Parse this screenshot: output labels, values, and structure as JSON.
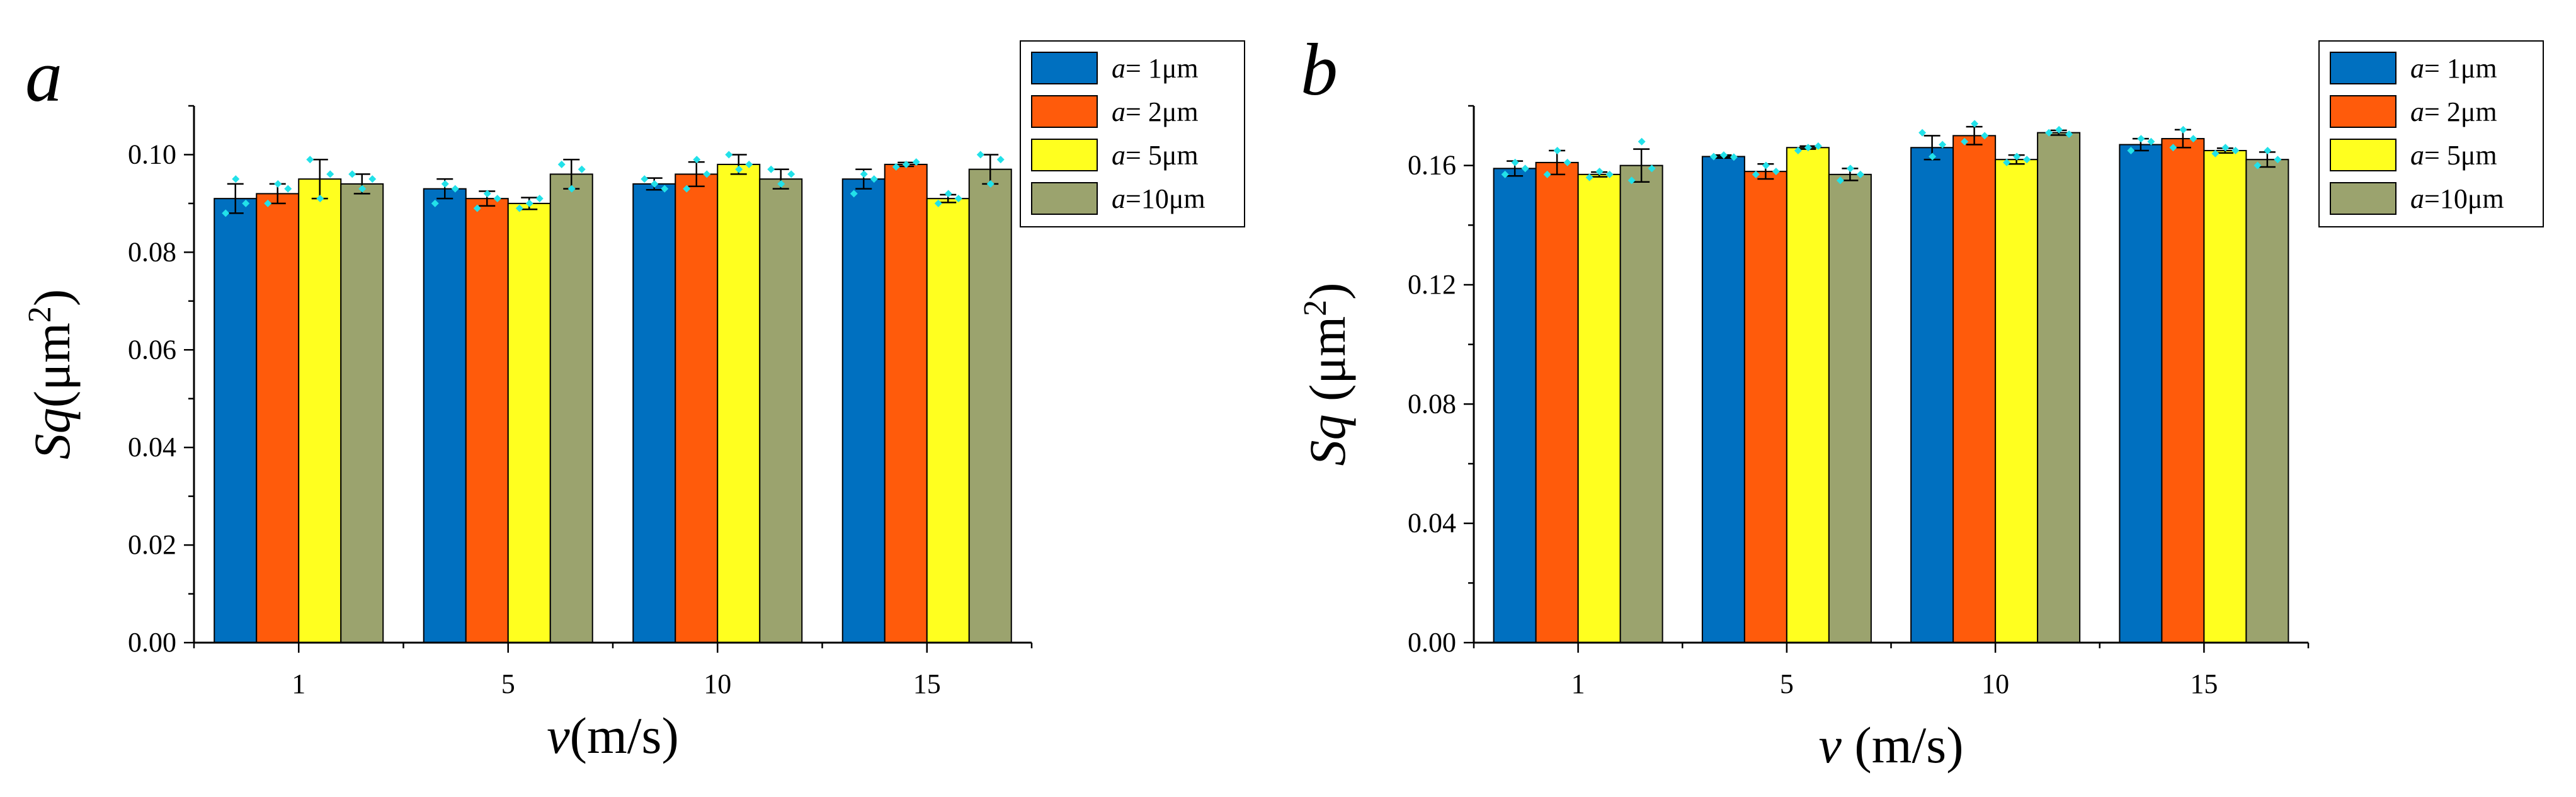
{
  "chart_data": [
    {
      "type": "bar",
      "panel_label": "a",
      "categories": [
        "1",
        "5",
        "10",
        "15"
      ],
      "xlabel": {
        "var": "v",
        "rest": "(m/s)"
      },
      "ylabel": {
        "var": "Sq",
        "rest": "(μm",
        "sup": "2",
        "close": ")"
      },
      "ylim": [
        0,
        0.11
      ],
      "yticks": [
        "0.00",
        "0.02",
        "0.04",
        "0.06",
        "0.08",
        "0.10"
      ],
      "grid": false,
      "legend_position": "top-right",
      "series": [
        {
          "name_var": "a",
          "name_rest": "=  1μm",
          "color": "#0070C0",
          "values": [
            0.091,
            0.093,
            0.094,
            0.095
          ],
          "errors": [
            0.003,
            0.002,
            0.0012,
            0.002
          ],
          "points": [
            [
              0.088,
              0.095,
              0.09
            ],
            [
              0.09,
              0.094,
              0.093
            ],
            [
              0.095,
              0.094,
              0.093
            ],
            [
              0.092,
              0.096,
              0.095
            ]
          ]
        },
        {
          "name_var": "a",
          "name_rest": "=  2μm",
          "color": "#FF5B0B",
          "values": [
            0.092,
            0.091,
            0.096,
            0.098
          ],
          "errors": [
            0.002,
            0.0015,
            0.0025,
            0.0004
          ],
          "points": [
            [
              0.09,
              0.094,
              0.093
            ],
            [
              0.089,
              0.092,
              0.091
            ],
            [
              0.093,
              0.099,
              0.096
            ],
            [
              0.0975,
              0.098,
              0.0985
            ]
          ]
        },
        {
          "name_var": "a",
          "name_rest": "=  5μm",
          "color": "#FFFF1F",
          "values": [
            0.095,
            0.09,
            0.098,
            0.091
          ],
          "errors": [
            0.004,
            0.0012,
            0.002,
            0.0008
          ],
          "points": [
            [
              0.099,
              0.091,
              0.096
            ],
            [
              0.089,
              0.09,
              0.091
            ],
            [
              0.1,
              0.097,
              0.098
            ],
            [
              0.09,
              0.092,
              0.091
            ]
          ]
        },
        {
          "name_var": "a",
          "name_rest": "=10μm",
          "color": "#9BA36E",
          "values": [
            0.094,
            0.096,
            0.095,
            0.097
          ],
          "errors": [
            0.002,
            0.003,
            0.002,
            0.003
          ],
          "points": [
            [
              0.096,
              0.093,
              0.095
            ],
            [
              0.098,
              0.093,
              0.097
            ],
            [
              0.097,
              0.094,
              0.096
            ],
            [
              0.1,
              0.094,
              0.099
            ]
          ]
        }
      ]
    },
    {
      "type": "bar",
      "panel_label": "b",
      "categories": [
        "1",
        "5",
        "10",
        "15"
      ],
      "xlabel": {
        "var": "v",
        "rest": " (m/s)"
      },
      "ylabel": {
        "var": "Sq",
        "rest": " (μm",
        "sup": "2",
        "close": ")"
      },
      "ylim": [
        0,
        0.18
      ],
      "yticks": [
        "0.00",
        "0.04",
        "0.08",
        "0.12",
        "0.16"
      ],
      "grid": false,
      "legend_position": "top-right",
      "series": [
        {
          "name_var": "a",
          "name_rest": "=  1μm",
          "color": "#0070C0",
          "values": [
            0.159,
            0.163,
            0.166,
            0.167
          ],
          "errors": [
            0.0025,
            0.0005,
            0.004,
            0.002
          ],
          "points": [
            [
              0.157,
              0.161,
              0.159
            ],
            [
              0.163,
              0.1635,
              0.1628
            ],
            [
              0.171,
              0.163,
              0.167
            ],
            [
              0.165,
              0.169,
              0.168
            ]
          ]
        },
        {
          "name_var": "a",
          "name_rest": "=  2μm",
          "color": "#FF5B0B",
          "values": [
            0.161,
            0.158,
            0.17,
            0.169
          ],
          "errors": [
            0.004,
            0.0025,
            0.003,
            0.003
          ],
          "points": [
            [
              0.157,
              0.165,
              0.161
            ],
            [
              0.157,
              0.16,
              0.158
            ],
            [
              0.168,
              0.174,
              0.17
            ],
            [
              0.166,
              0.172,
              0.169
            ]
          ]
        },
        {
          "name_var": "a",
          "name_rest": "=  5μm",
          "color": "#FFFF1F",
          "values": [
            0.157,
            0.166,
            0.162,
            0.165
          ],
          "errors": [
            0.0008,
            0.0005,
            0.0015,
            0.0008
          ],
          "points": [
            [
              0.156,
              0.158,
              0.157
            ],
            [
              0.165,
              0.166,
              0.1665
            ],
            [
              0.161,
              0.163,
              0.162
            ],
            [
              0.164,
              0.166,
              0.165
            ]
          ]
        },
        {
          "name_var": "a",
          "name_rest": "=10μm",
          "color": "#9BA36E",
          "values": [
            0.16,
            0.157,
            0.171,
            0.162
          ],
          "errors": [
            0.0055,
            0.002,
            0.0008,
            0.0025
          ],
          "points": [
            [
              0.155,
              0.168,
              0.159
            ],
            [
              0.155,
              0.159,
              0.157
            ],
            [
              0.171,
              0.172,
              0.1705
            ],
            [
              0.16,
              0.165,
              0.162
            ]
          ]
        }
      ]
    }
  ]
}
